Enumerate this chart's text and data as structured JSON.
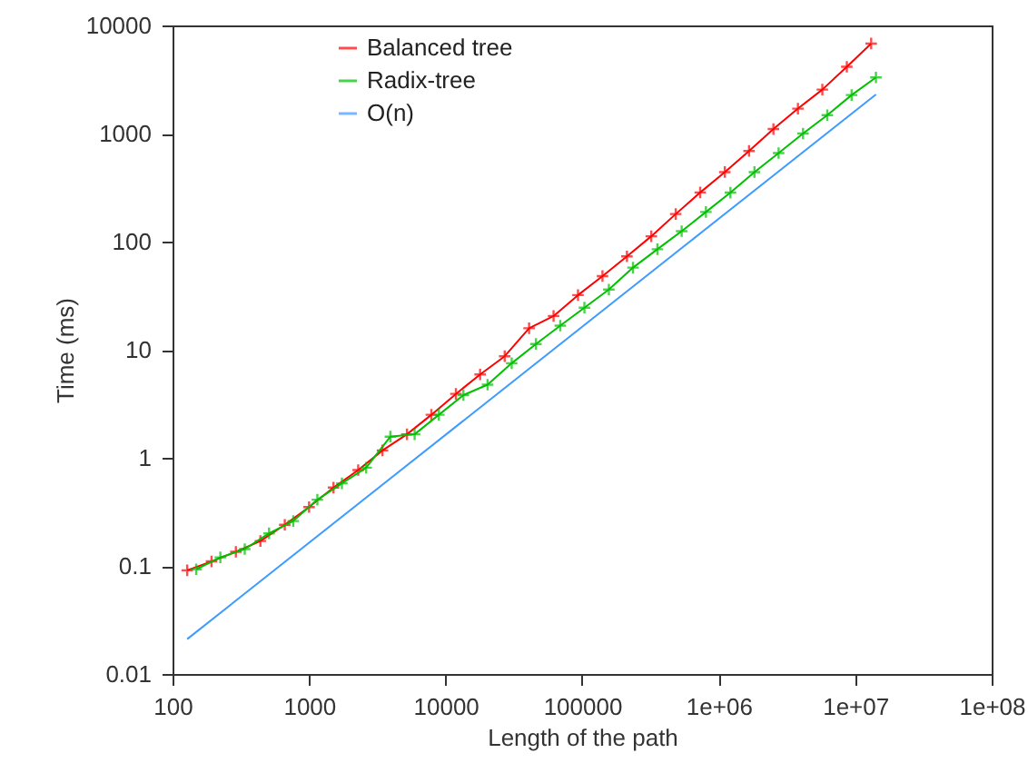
{
  "chart_data": {
    "type": "line",
    "xlabel": "Length of the path",
    "ylabel": "Time (ms)",
    "log": "xy",
    "grid": false,
    "legend": "top left",
    "xlim": [
      100,
      100000000
    ],
    "ylim": [
      0.01,
      10000
    ],
    "xticks": [
      100,
      1000,
      10000,
      100000,
      {
        "value": 1000000,
        "label": "1e+06"
      },
      {
        "value": 10000000,
        "label": "1e+07"
      },
      {
        "value": 100000000,
        "label": "1e+08"
      }
    ],
    "yticks": [
      0.01,
      0.1,
      1,
      10,
      100,
      1000,
      10000
    ],
    "series": [
      {
        "name": "Balanced tree",
        "color": "#ff0000",
        "marker": "cross",
        "x": [
          128,
          193,
          291,
          440,
          664,
          1000,
          1510,
          2290,
          3450,
          5210,
          7870,
          11900,
          17900,
          27100,
          40900,
          61800,
          93300,
          141000,
          213000,
          321000,
          485000,
          733000,
          1110000,
          1670000,
          2520000,
          3810000,
          5750000,
          8690000,
          13100000
        ],
        "values": [
          0.091,
          0.11,
          0.135,
          0.17,
          0.24,
          0.35,
          0.53,
          0.77,
          1.17,
          1.65,
          2.5,
          3.9,
          5.9,
          8.7,
          15.8,
          20.5,
          32,
          48,
          73,
          112,
          180,
          285,
          440,
          690,
          1100,
          1700,
          2550,
          4150,
          6800
        ]
      },
      {
        "name": "Radix-tree",
        "color": "#00c000",
        "marker": "cross",
        "x": [
          149,
          224,
          338,
          509,
          766,
          1150,
          1740,
          2620,
          3940,
          5930,
          8930,
          13500,
          20300,
          30500,
          45900,
          69200,
          104000,
          157000,
          236000,
          356000,
          536000,
          807000,
          1220000,
          1830000,
          2750000,
          4150000,
          6250000,
          9420000,
          14200000
        ],
        "values": [
          0.093,
          0.12,
          0.143,
          0.2,
          0.26,
          0.41,
          0.58,
          0.81,
          1.57,
          1.65,
          2.5,
          3.8,
          4.75,
          7.5,
          11.3,
          16.7,
          24.5,
          36,
          57.5,
          85,
          125,
          188,
          284,
          440,
          660,
          1000,
          1480,
          2270,
          3300
        ]
      },
      {
        "name": "O(n)",
        "color": "#3d9bff",
        "marker": "none",
        "x": [
          128,
          14200000
        ],
        "values": [
          0.021,
          2300
        ]
      }
    ]
  }
}
